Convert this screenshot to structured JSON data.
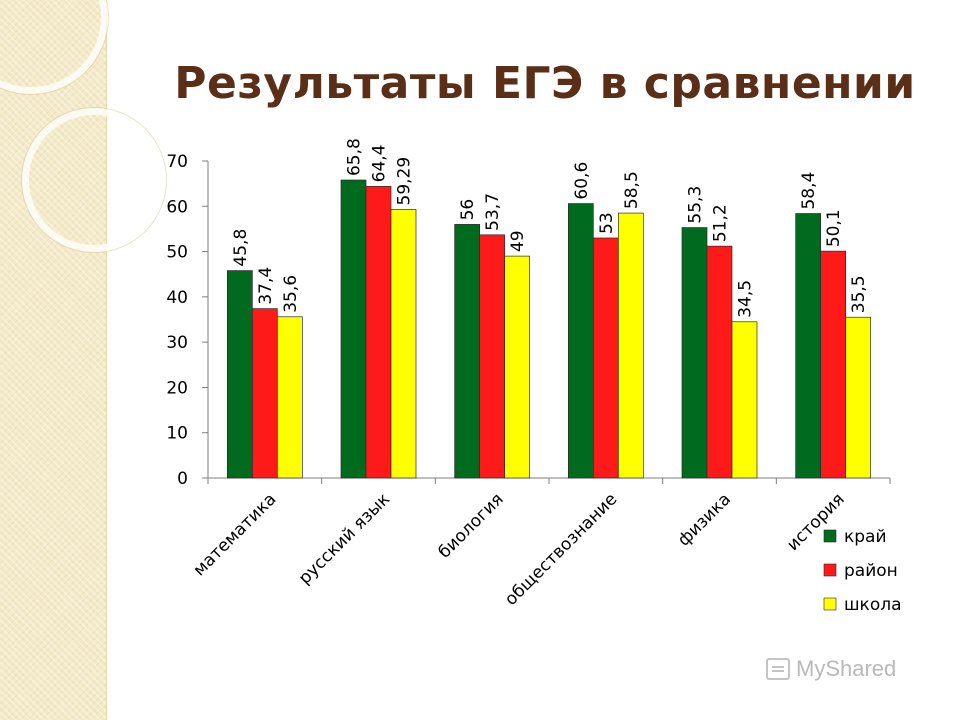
{
  "slide": {
    "title": "Результаты ЕГЭ в сравнении",
    "watermark": "MyShared"
  },
  "chart_data": {
    "type": "bar",
    "title": "Результаты ЕГЭ в сравнении",
    "categories": [
      "математика",
      "русский язык",
      "биология",
      "обществознание",
      "физика",
      "история"
    ],
    "series": [
      {
        "name": "край",
        "color": "#006b1f",
        "values": [
          45.8,
          65.8,
          56,
          60.6,
          55.3,
          58.4
        ],
        "labels": [
          "45,8",
          "65,8",
          "56",
          "60,6",
          "55,3",
          "58,4"
        ]
      },
      {
        "name": "район",
        "color": "#ff1a1a",
        "values": [
          37.4,
          64.4,
          53.7,
          53,
          51.2,
          50.1
        ],
        "labels": [
          "37,4",
          "64,4",
          "53,7",
          "53",
          "51,2",
          "50,1"
        ]
      },
      {
        "name": "школа",
        "color": "#ffff00",
        "values": [
          35.6,
          59.29,
          49,
          58.5,
          34.5,
          35.5
        ],
        "labels": [
          "35,6",
          "59,29",
          "49",
          "58,5",
          "34,5",
          "35,5"
        ]
      }
    ],
    "ylim": [
      0,
      70
    ],
    "yticks": [
      0,
      10,
      20,
      30,
      40,
      50,
      60,
      70
    ],
    "xlabel": "",
    "ylabel": "",
    "legend": "bottom-right",
    "grid": false
  }
}
